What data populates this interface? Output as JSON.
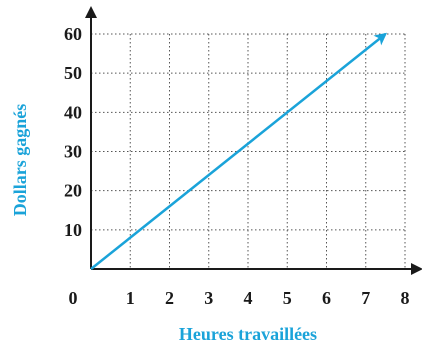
{
  "chart_data": {
    "type": "line",
    "xlabel": "Heures travaillées",
    "ylabel": "Dollars gagnés",
    "xlim": [
      0,
      8
    ],
    "ylim": [
      0,
      60
    ],
    "x_ticks": [
      1,
      2,
      3,
      4,
      5,
      6,
      7,
      8
    ],
    "y_ticks": [
      10,
      20,
      30,
      40,
      50,
      60
    ],
    "origin_label": "0",
    "grid": true,
    "series": [
      {
        "x": [
          0,
          7.5
        ],
        "y": [
          0,
          60
        ],
        "color": "#1aa3d9",
        "arrow": true
      }
    ],
    "colors": {
      "axis_title": "#1aa3d9",
      "line": "#1aa3d9",
      "ticks": "#1a1a1a"
    }
  }
}
